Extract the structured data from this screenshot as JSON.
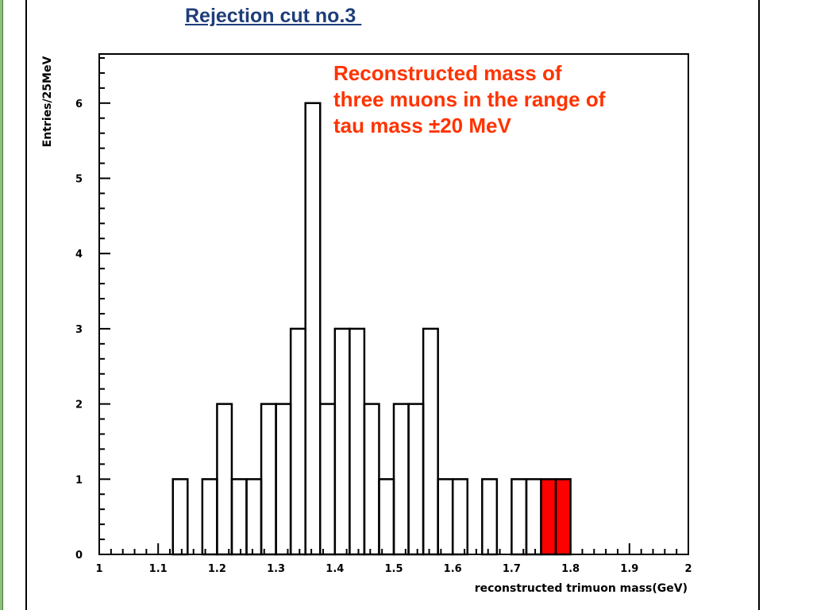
{
  "slide": {
    "title": "Rejection cut no.3 ",
    "annotation_lines": [
      "Reconstructed mass of",
      "three muons in the range of",
      "tau mass ±20 MeV"
    ]
  },
  "chart_data": {
    "type": "bar",
    "subtype": "histogram",
    "xlabel": "reconstructed trimuon mass(GeV)",
    "ylabel": "Entries/25MeV",
    "xlim": [
      1.0,
      2.0
    ],
    "ylim": [
      0,
      6.6
    ],
    "bin_width": 0.025,
    "x_ticks": [
      "1",
      "1.1",
      "1.2",
      "1.3",
      "1.4",
      "1.5",
      "1.6",
      "1.7",
      "1.8",
      "1.9",
      "2"
    ],
    "y_ticks": [
      "0",
      "1",
      "2",
      "3",
      "4",
      "5",
      "6"
    ],
    "bins": [
      {
        "x0": 1.125,
        "x1": 1.15,
        "value": 1
      },
      {
        "x0": 1.175,
        "x1": 1.2,
        "value": 1
      },
      {
        "x0": 1.2,
        "x1": 1.225,
        "value": 2
      },
      {
        "x0": 1.225,
        "x1": 1.25,
        "value": 1
      },
      {
        "x0": 1.25,
        "x1": 1.275,
        "value": 1
      },
      {
        "x0": 1.275,
        "x1": 1.3,
        "value": 2
      },
      {
        "x0": 1.3,
        "x1": 1.325,
        "value": 2
      },
      {
        "x0": 1.325,
        "x1": 1.35,
        "value": 3
      },
      {
        "x0": 1.35,
        "x1": 1.375,
        "value": 6
      },
      {
        "x0": 1.375,
        "x1": 1.4,
        "value": 2
      },
      {
        "x0": 1.4,
        "x1": 1.425,
        "value": 3
      },
      {
        "x0": 1.425,
        "x1": 1.45,
        "value": 3
      },
      {
        "x0": 1.45,
        "x1": 1.475,
        "value": 2
      },
      {
        "x0": 1.475,
        "x1": 1.5,
        "value": 1
      },
      {
        "x0": 1.5,
        "x1": 1.525,
        "value": 2
      },
      {
        "x0": 1.525,
        "x1": 1.55,
        "value": 2
      },
      {
        "x0": 1.55,
        "x1": 1.575,
        "value": 3
      },
      {
        "x0": 1.575,
        "x1": 1.6,
        "value": 1
      },
      {
        "x0": 1.6,
        "x1": 1.625,
        "value": 1
      },
      {
        "x0": 1.65,
        "x1": 1.675,
        "value": 1
      },
      {
        "x0": 1.7,
        "x1": 1.725,
        "value": 1
      },
      {
        "x0": 1.725,
        "x1": 1.75,
        "value": 1
      },
      {
        "x0": 1.75,
        "x1": 1.775,
        "value": 1,
        "highlight": true
      },
      {
        "x0": 1.775,
        "x1": 1.8,
        "value": 1,
        "highlight": true
      }
    ],
    "highlight_color": "#ff0000",
    "grid": false
  }
}
